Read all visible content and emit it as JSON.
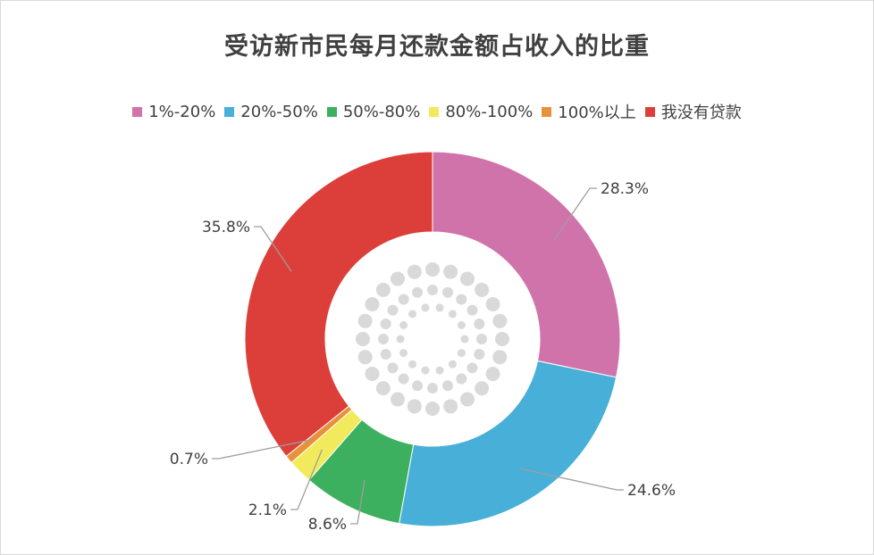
{
  "chart_data": {
    "type": "pie",
    "title": "受访新市民每月还款金额占收入的比重",
    "categories": [
      "1%-20%",
      "20%-50%",
      "50%-80%",
      "80%-100%",
      "100%以上",
      "我没有贷款"
    ],
    "values": [
      28.3,
      24.6,
      8.6,
      2.1,
      0.7,
      35.8
    ],
    "labels": [
      "28.3%",
      "24.6%",
      "8.6%",
      "2.1%",
      "0.7%",
      "35.8%"
    ],
    "colors": [
      "#d173ab",
      "#47afd8",
      "#3cb05e",
      "#f1ea5c",
      "#e8913a",
      "#dc3f3a"
    ],
    "legend_position": "top",
    "donut": true
  },
  "center_decoration": {
    "color": "#d9d9d9"
  }
}
